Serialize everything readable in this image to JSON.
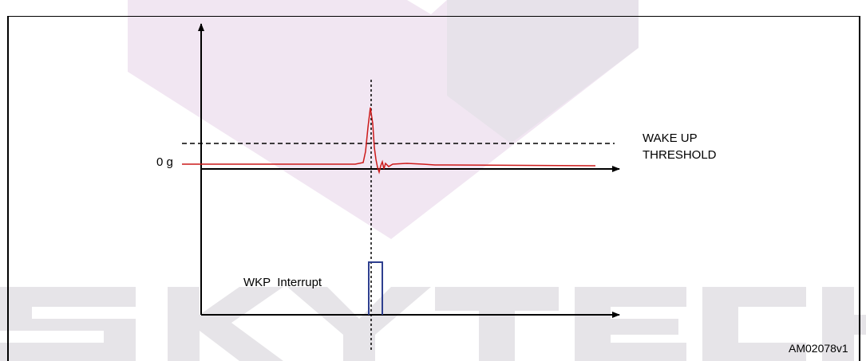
{
  "labels": {
    "zero_g": "0 g",
    "wake_up_line1": "WAKE UP",
    "wake_up_line2": "THRESHOLD",
    "wkp_interrupt": "WKP  Interrupt",
    "figure_code": "AM02078v1"
  },
  "watermark": {
    "text": "SKYTECH",
    "color": "#e9dcec"
  },
  "colors": {
    "signal": "#cc1a1a",
    "interrupt": "#2e3f8f",
    "axes": "#000000"
  }
}
